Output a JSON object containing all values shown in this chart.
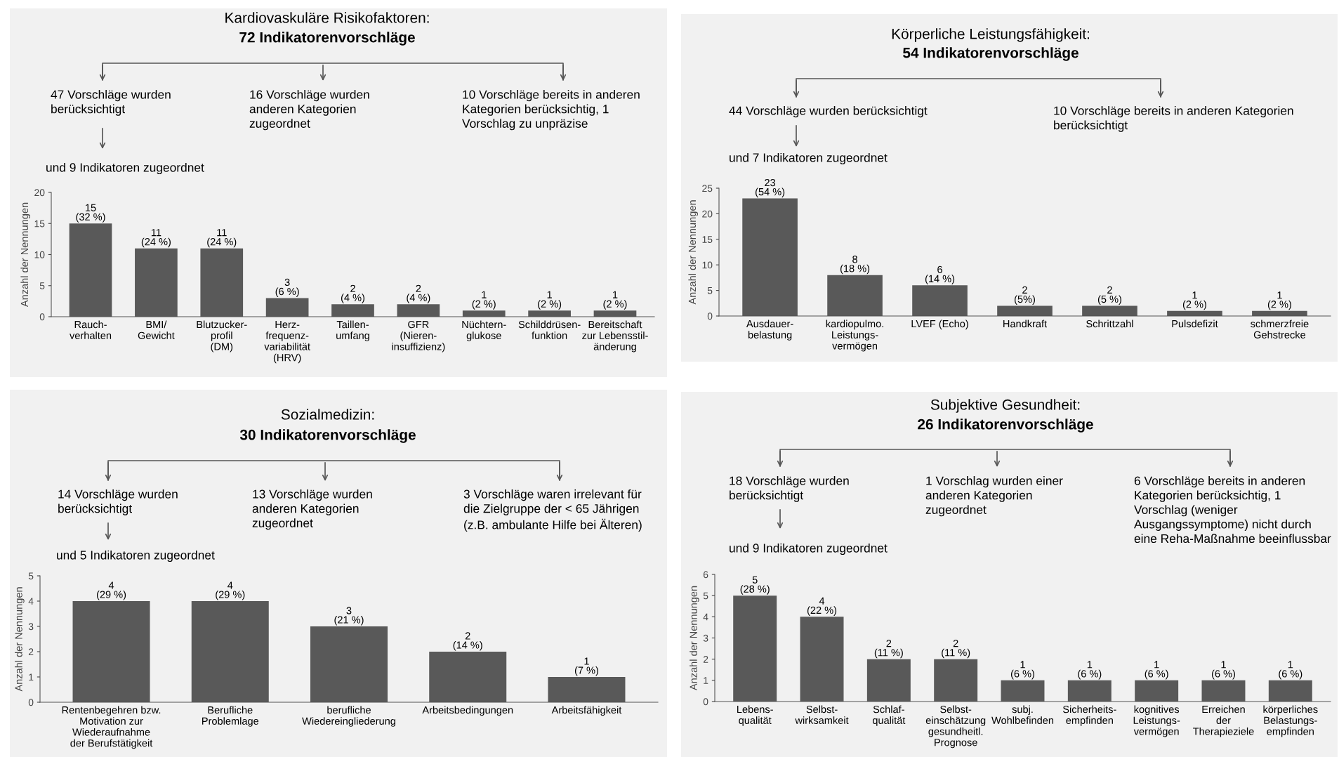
{
  "chart_data": [
    {
      "type": "bar",
      "title": "Kardiovaskuläre Risikofaktoren:",
      "subtitle": "72 Indikatorenvorschläge",
      "ylabel": "Anzahl der Nennungen",
      "categories": [
        "Rauch-\nverhalten",
        "BMI/\nGewicht",
        "Blutzucker-\nprofil\n(DM)",
        "Herz-\nfrequenz-\nvariabilität\n(HRV)",
        "Taillen-\numfang",
        "GFR\n(Nieren-\ninsuffizienz)",
        "Nüchtern-\nglukose",
        "Schilddrüsen-\nfunktion",
        "Bereitschaft\nzur Lebensstil-\nänderung"
      ],
      "values": [
        15,
        11,
        11,
        3,
        2,
        2,
        1,
        1,
        1
      ],
      "color": "#595959",
      "value_labels": [
        "15\n(32 %)",
        "11\n(24 %)",
        "11\n(24 %)",
        "3\n(6 %)",
        "2\n(4 %)",
        "2\n(4 %)",
        "1\n(2 %)",
        "1\n(2 %)",
        "1\n(2 %)"
      ],
      "ylim": [
        0,
        20
      ],
      "yticks": [
        0,
        5,
        10,
        15,
        20
      ],
      "grid": false,
      "annotations": [
        "47 Vorschläge wurden\nberücksichtigt",
        "16 Vorschläge wurden\nanderen Kategorien\nzugeordnet",
        "10 Vorschläge bereits in anderen\nKategorien berücksichtig, 1\nVorschlag zu unpräzise",
        "und 9 Indikatoren zugeordnet"
      ]
    },
    {
      "type": "bar",
      "title": "Körperliche Leistungsfähigkeit:",
      "subtitle": "54 Indikatorenvorschläge",
      "ylabel": "Anzahl der Nennungen",
      "categories": [
        "Ausdauer-\nbelastung",
        "kardiopulmo.\nLeistungs-\nvermögen",
        "LVEF (Echo)",
        "Handkraft",
        "Schrittzahl",
        "Pulsdefizit",
        "schmerzfreie\nGehstrecke"
      ],
      "values": [
        23,
        8,
        6,
        2,
        2,
        1,
        1
      ],
      "color": "#595959",
      "value_labels": [
        "23\n(54 %)",
        "8\n(18 %)",
        "6\n(14 %)",
        "2\n(5%)",
        "2\n(5 %)",
        "1\n(2 %)",
        "1\n(2 %)"
      ],
      "ylim": [
        0,
        25
      ],
      "yticks": [
        0,
        5,
        10,
        15,
        20,
        25
      ],
      "grid": false,
      "annotations": [
        "44 Vorschläge wurden berücksichtigt",
        "10 Vorschläge bereits in anderen Kategorien\nberücksichtigt",
        "und 7 Indikatoren zugeordnet"
      ]
    },
    {
      "type": "bar",
      "title": "Sozialmedizin:",
      "subtitle": "30 Indikatorenvorschläge",
      "ylabel": "Anzahl der Nennungen",
      "categories": [
        "Rentenbegehren bzw.\nMotivation zur\nWiederaufnahme\nder Berufstätigkeit",
        "Berufliche\nProblemlage",
        "berufliche\nWiedereingliederung",
        "Arbeitsbedingungen",
        "Arbeitsfähigkeit"
      ],
      "values": [
        4,
        4,
        3,
        2,
        1
      ],
      "color": "#595959",
      "value_labels": [
        "4\n(29 %)",
        "4\n(29 %)",
        "3\n(21 %)",
        "2\n(14 %)",
        "1\n(7 %)"
      ],
      "ylim": [
        0,
        5
      ],
      "yticks": [
        0,
        1,
        2,
        3,
        4,
        5
      ],
      "grid": false,
      "annotations": [
        "14 Vorschläge wurden\nberücksichtigt",
        "13 Vorschläge wurden\nanderen Kategorien\nzugeordnet",
        "3 Vorschläge waren irrelevant für\ndie Zielgruppe der < 65 Jährigen\n(z.B. ambulante Hilfe bei Älteren)",
        "und 5 Indikatoren zugeordnet"
      ]
    },
    {
      "type": "bar",
      "title": "Subjektive Gesundheit:",
      "subtitle": "26 Indikatorenvorschläge",
      "ylabel": "Anzahl der Nennungen",
      "categories": [
        "Lebens-\nqualität",
        "Selbst-\nwirksamkeit",
        "Schlaf-\nqualität",
        "Selbst-\neinschätzung\ngesundheitl.\nPrognose",
        "subj.\nWohlbefinden",
        "Sicherheits-\nempfinden",
        "kognitives\nLeistungs-\nvermögen",
        "Erreichen\nder\nTherapieziele",
        "körperliches\nBelastungs-\nempfinden"
      ],
      "values": [
        5,
        4,
        2,
        2,
        1,
        1,
        1,
        1,
        1
      ],
      "color": "#595959",
      "value_labels": [
        "5\n(28 %)",
        "4\n(22 %)",
        "2\n(11 %)",
        "2\n(11 %)",
        "1\n(6 %)",
        "1\n(6 %)",
        "1\n(6 %)",
        "1\n(6 %)",
        "1\n(6 %)"
      ],
      "ylim": [
        0,
        6
      ],
      "yticks": [
        0,
        1,
        2,
        3,
        4,
        5,
        6
      ],
      "grid": false,
      "annotations": [
        "18 Vorschläge wurden\nberücksichtigt",
        "1 Vorschlag wurden einer\nanderen Kategorien\nzugeordnet",
        "6 Vorschläge bereits in anderen\nKategorien berücksichtig, 1\nVorschlag (weniger\nAusgangssymptome) nicht durch\neine Reha-Maßnahme beeinflussbar",
        "und 9 Indikatoren zugeordnet"
      ]
    }
  ]
}
